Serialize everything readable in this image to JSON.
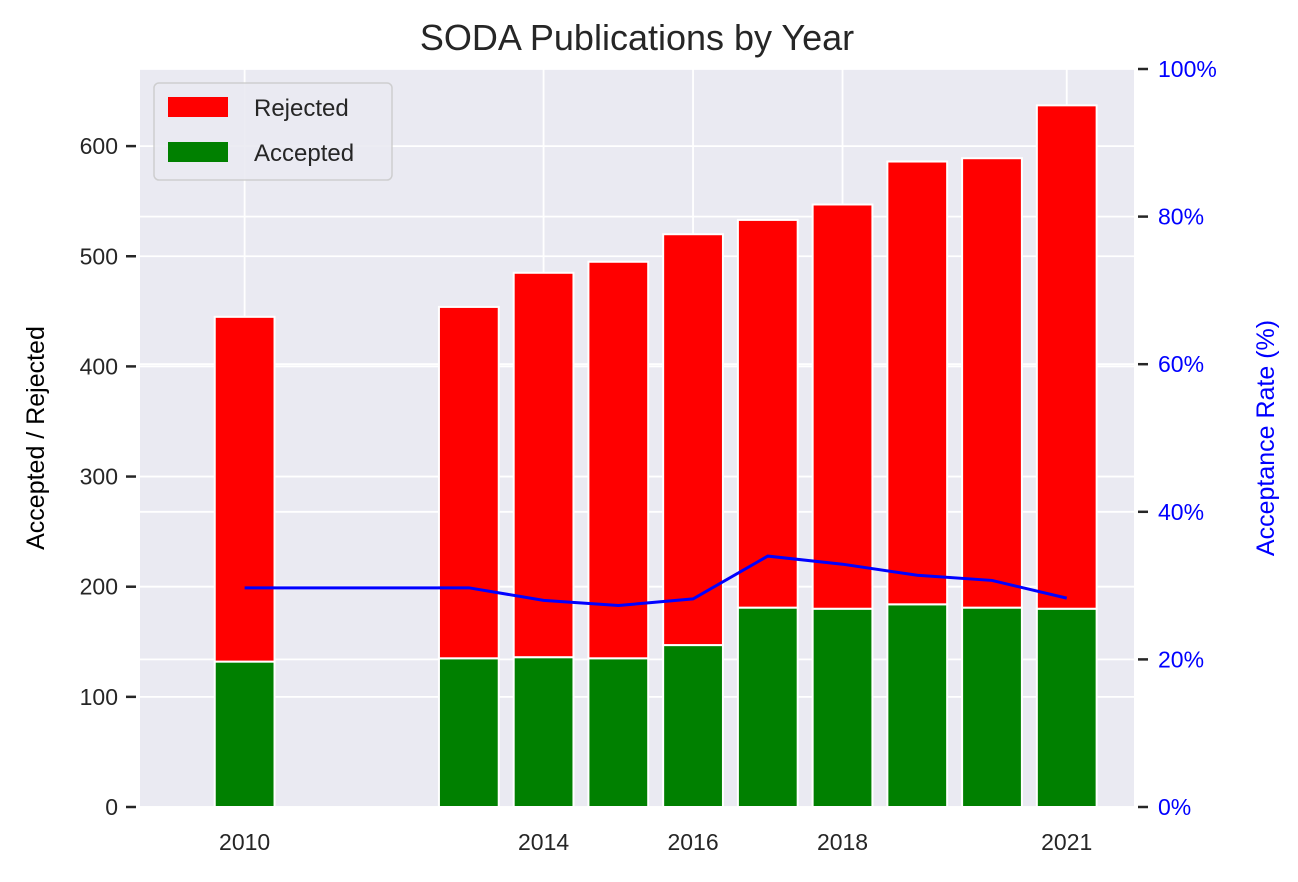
{
  "chart_data": {
    "type": "bar",
    "stacked": true,
    "title": "SODA Publications by Year",
    "ylabel": "Accepted / Rejected",
    "ylabel_right": "Acceptance Rate (%)",
    "x": [
      2010,
      2013,
      2014,
      2015,
      2016,
      2017,
      2018,
      2019,
      2020,
      2021
    ],
    "x_tick_labels": [
      "2010",
      "2014",
      "2016",
      "2018",
      "2021"
    ],
    "x_tick_values": [
      2010,
      2014,
      2016,
      2018,
      2021
    ],
    "xlim": [
      2008.6,
      2021.9
    ],
    "ylim": [
      0,
      670
    ],
    "y_ticks": [
      0,
      100,
      200,
      300,
      400,
      500,
      600
    ],
    "y_tick_labels": [
      "0",
      "100",
      "200",
      "300",
      "400",
      "500",
      "600"
    ],
    "ylim_right": [
      0,
      100
    ],
    "y_ticks_right": [
      0,
      20,
      40,
      60,
      80,
      100
    ],
    "y_tick_labels_right": [
      "0%",
      "20%",
      "40%",
      "60%",
      "80%",
      "100%"
    ],
    "series": [
      {
        "name": "Accepted",
        "color": "#008000",
        "values": [
          132,
          135,
          136,
          135,
          147,
          181,
          180,
          184,
          181,
          180
        ]
      },
      {
        "name": "Rejected",
        "color": "#ff0000",
        "values": [
          313,
          319,
          349,
          360,
          373,
          352,
          367,
          402,
          408,
          457
        ]
      }
    ],
    "acceptance_rate": {
      "color": "#0000ff",
      "values": [
        29.7,
        29.7,
        28.0,
        27.3,
        28.2,
        34.0,
        32.9,
        31.4,
        30.7,
        28.3
      ]
    },
    "legend": {
      "placement": "upper-left",
      "entries": [
        "Rejected",
        "Accepted"
      ]
    },
    "grid": true,
    "colors": {
      "background": "#eaeaf2",
      "grid": "#ffffff",
      "right_axis": "#0000ff"
    }
  }
}
